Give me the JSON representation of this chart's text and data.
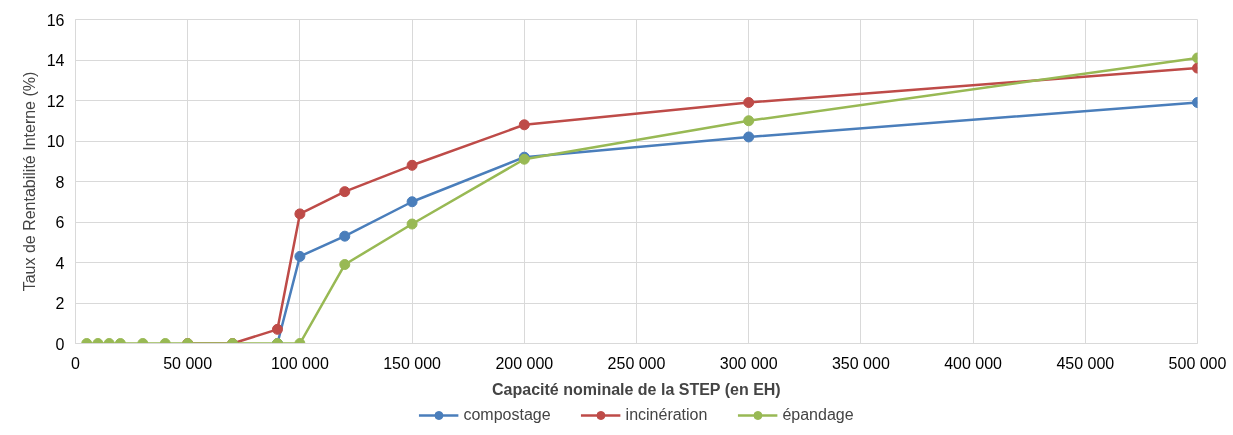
{
  "chart_data": {
    "type": "line",
    "xlabel": "Capacité nominale de la STEP (en EH)",
    "ylabel": "Taux de Rentabilité Interne (%)",
    "x": [
      5000,
      10000,
      15000,
      20000,
      30000,
      40000,
      50000,
      70000,
      90000,
      100000,
      120000,
      150000,
      200000,
      300000,
      500000
    ],
    "series": [
      {
        "name": "compostage",
        "color": "#4a7ebb",
        "values": [
          null,
          null,
          null,
          null,
          null,
          null,
          null,
          null,
          0,
          4.3,
          5.3,
          7.0,
          9.2,
          10.2,
          11.9
        ]
      },
      {
        "name": "incinération",
        "color": "#be4b48",
        "values": [
          null,
          null,
          null,
          null,
          null,
          null,
          0,
          0,
          0.7,
          6.4,
          7.5,
          8.8,
          10.8,
          11.9,
          13.6
        ]
      },
      {
        "name": "épandage",
        "color": "#98b954",
        "values": [
          0,
          0,
          0,
          0,
          0,
          0,
          0,
          0,
          0,
          0,
          3.9,
          5.9,
          9.1,
          11.0,
          14.1
        ]
      }
    ],
    "xlim": [
      0,
      500000
    ],
    "ylim": [
      0,
      16
    ],
    "xticks": [
      {
        "value": 0,
        "label": "0"
      },
      {
        "value": 50000,
        "label": "50 000"
      },
      {
        "value": 100000,
        "label": "100 000"
      },
      {
        "value": 150000,
        "label": "150 000"
      },
      {
        "value": 200000,
        "label": "200 000"
      },
      {
        "value": 250000,
        "label": "250 000"
      },
      {
        "value": 300000,
        "label": "300 000"
      },
      {
        "value": 350000,
        "label": "350 000"
      },
      {
        "value": 400000,
        "label": "400 000"
      },
      {
        "value": 450000,
        "label": "450 000"
      },
      {
        "value": 500000,
        "label": "500 000"
      }
    ],
    "yticks": [
      0,
      2,
      4,
      6,
      8,
      10,
      12,
      14,
      16
    ],
    "grid": true,
    "legend": "bottom",
    "marker": "circle",
    "line_style": "solid"
  }
}
